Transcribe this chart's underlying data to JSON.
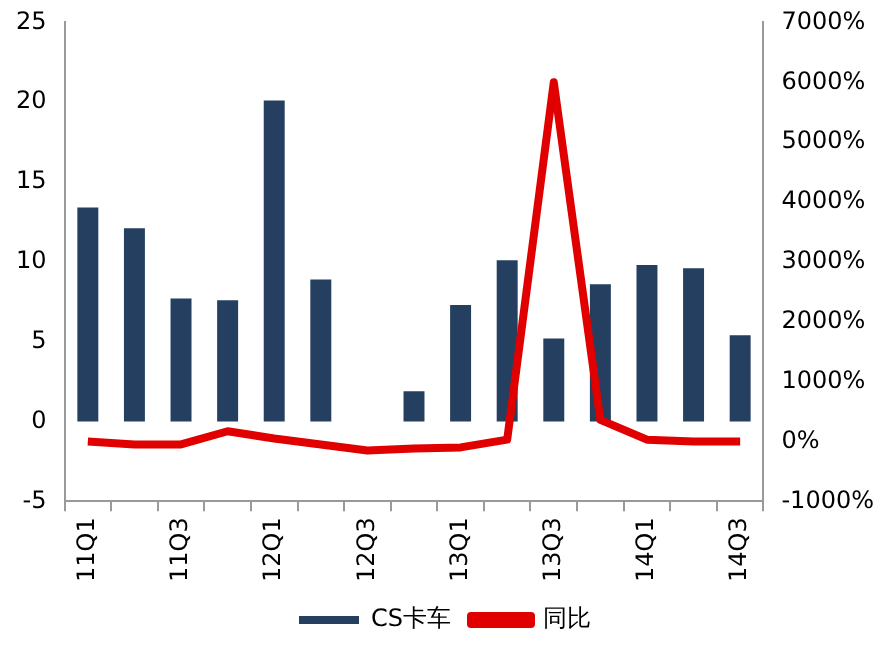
{
  "chart_data": {
    "type": "bar",
    "categories": [
      "11Q1",
      null,
      "11Q3",
      null,
      "12Q1",
      null,
      "12Q3",
      null,
      "13Q1",
      null,
      "13Q3",
      null,
      "14Q1",
      null,
      "14Q3"
    ],
    "series": [
      {
        "name": "CS卡车",
        "color": "#243f60",
        "values": [
          13.4,
          12.1,
          7.7,
          7.6,
          20.1,
          8.9,
          0,
          1.9,
          7.3,
          10.1,
          5.2,
          8.6,
          9.8,
          9.6,
          5.4
        ]
      },
      {
        "name": "同比",
        "type": "line",
        "axis": "y2",
        "color": "#e00000",
        "values": [
          0,
          -50,
          -50,
          170,
          50,
          -50,
          -150,
          -120,
          -100,
          30,
          6000,
          360,
          30,
          0,
          0
        ]
      }
    ],
    "ylim": [
      -5,
      25
    ],
    "yticks": [
      -5,
      0,
      5,
      10,
      15,
      20,
      25
    ],
    "y2lim": [
      -1000,
      7000
    ],
    "y2ticks": [
      {
        "value": -1000,
        "label": "-1000%"
      },
      {
        "value": 0,
        "label": "0%"
      },
      {
        "value": 1000,
        "label": "1000%"
      },
      {
        "value": 2000,
        "label": "2000%"
      },
      {
        "value": 3000,
        "label": "3000%"
      },
      {
        "value": 4000,
        "label": "4000%"
      },
      {
        "value": 5000,
        "label": "5000%"
      },
      {
        "value": 6000,
        "label": "6000%"
      },
      {
        "value": 7000,
        "label": "7000%"
      }
    ],
    "grid": false,
    "legend": "bottom",
    "marker": "none"
  }
}
